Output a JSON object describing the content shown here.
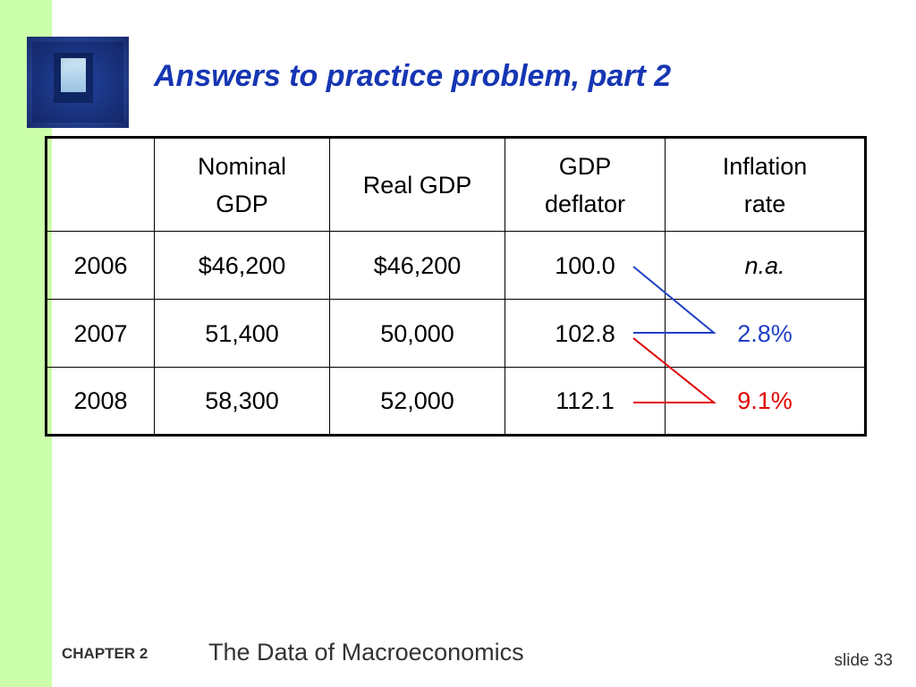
{
  "title": "Answers to practice problem, part 2",
  "table": {
    "headers": [
      "",
      "Nominal\nGDP",
      "Real GDP",
      "GDP\ndeflator",
      "Inflation\nrate"
    ],
    "rows": [
      {
        "year": "2006",
        "nominal": "$46,200",
        "real": "$46,200",
        "deflator": "100.0",
        "inflation": "n.a."
      },
      {
        "year": "2007",
        "nominal": "51,400",
        "real": "50,000",
        "deflator": "102.8",
        "inflation": "2.8%"
      },
      {
        "year": "2008",
        "nominal": "58,300",
        "real": "52,000",
        "deflator": "112.1",
        "inflation": "9.1%"
      }
    ]
  },
  "footer": {
    "chapter_label": "CHAPTER 2",
    "chapter_title": "The Data of Macroeconomics",
    "slide_label": "slide 33"
  },
  "colors": {
    "sidebar": "#ccffaa",
    "title": "#1636b3",
    "blue_connector": "#1f3fc4",
    "red_connector": "#e00000"
  }
}
